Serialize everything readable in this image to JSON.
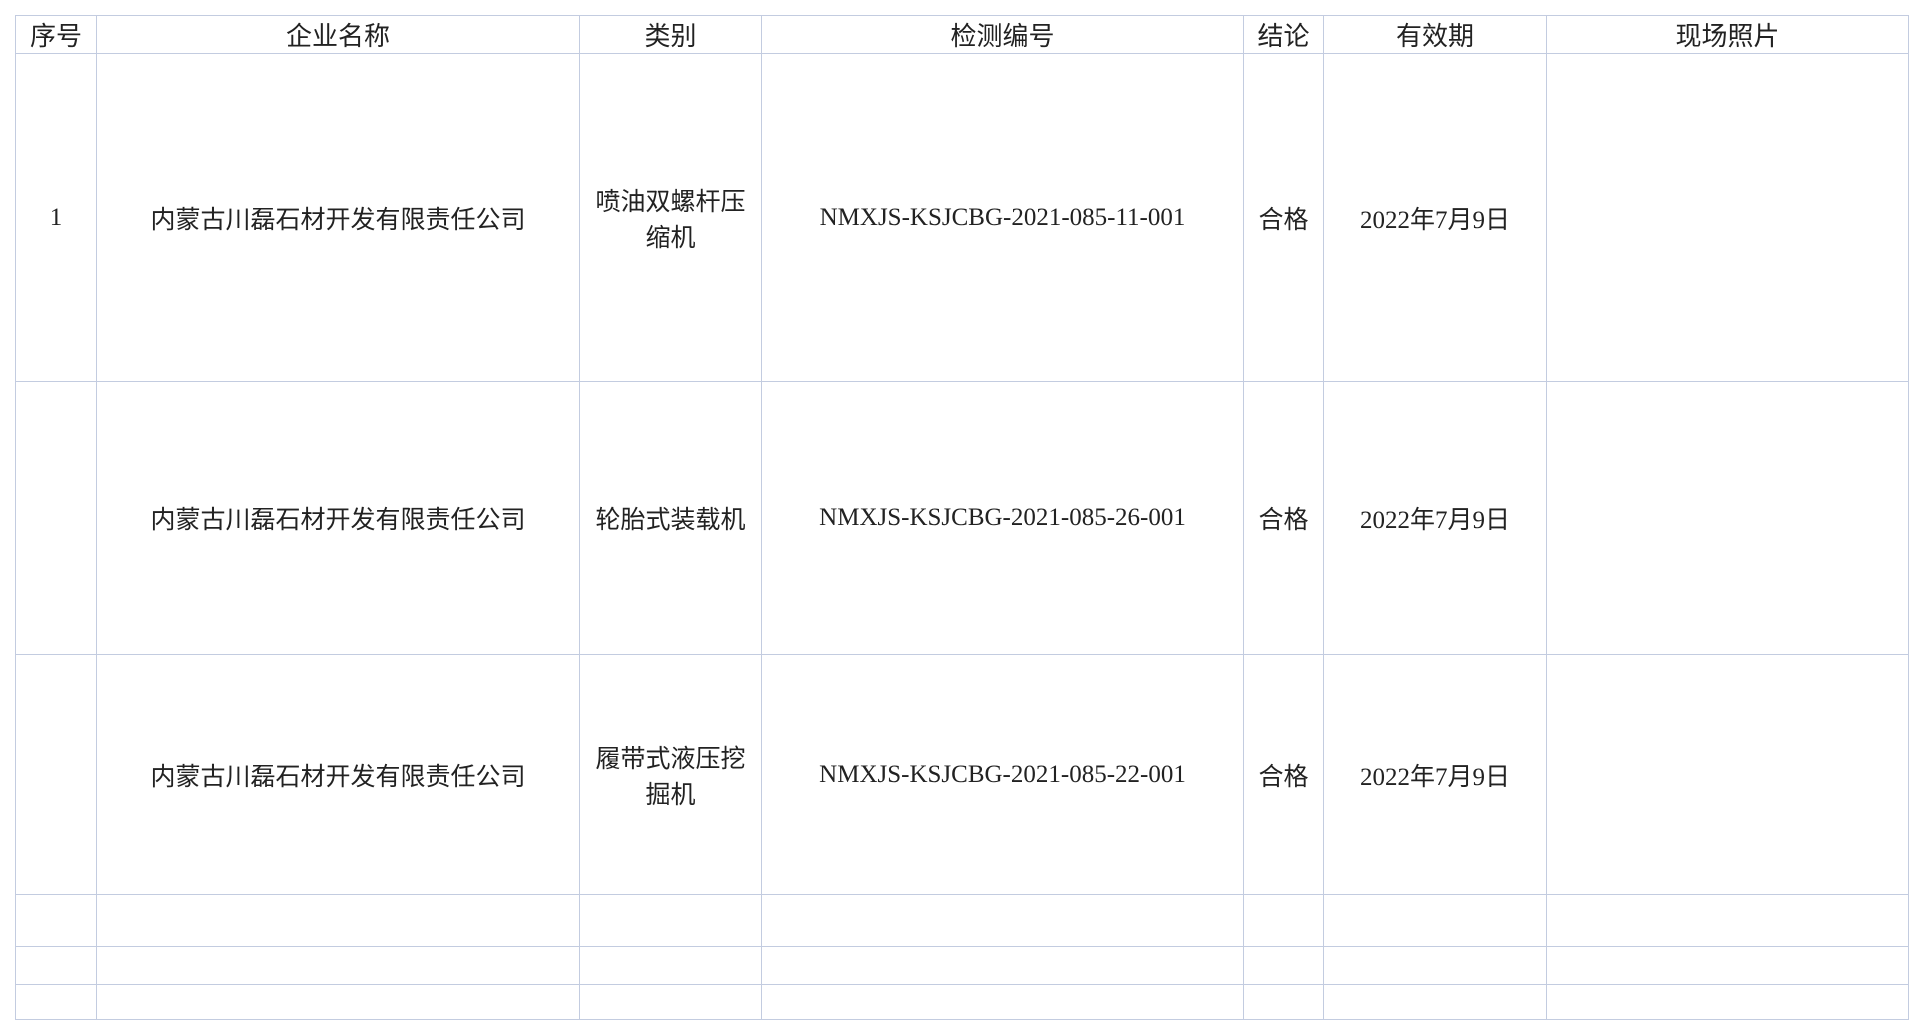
{
  "header": [
    "序号",
    "企业名称",
    "类别",
    "检测编号",
    "结论",
    "有效期",
    "现场照片"
  ],
  "rows": [
    {
      "no": "1",
      "company": "内蒙古川磊石材开发有限责任公司",
      "category": "喷油双螺杆压缩机",
      "code": "NMXJS-KSJCBG-2021-085-11-001",
      "result": "合格",
      "valid": "2022年7月9日"
    },
    {
      "company": "内蒙古川磊石材开发有限责任公司",
      "category": "轮胎式装载机",
      "code": "NMXJS-KSJCBG-2021-085-26-001",
      "result": "合格",
      "valid": "2022年7月9日"
    },
    {
      "company": "内蒙古川磊石材开发有限责任公司",
      "category": "履带式液压挖掘机",
      "code": "NMXJS-KSJCBG-2021-085-22-001",
      "result": "合格",
      "valid": "2022年7月9日"
    }
  ]
}
